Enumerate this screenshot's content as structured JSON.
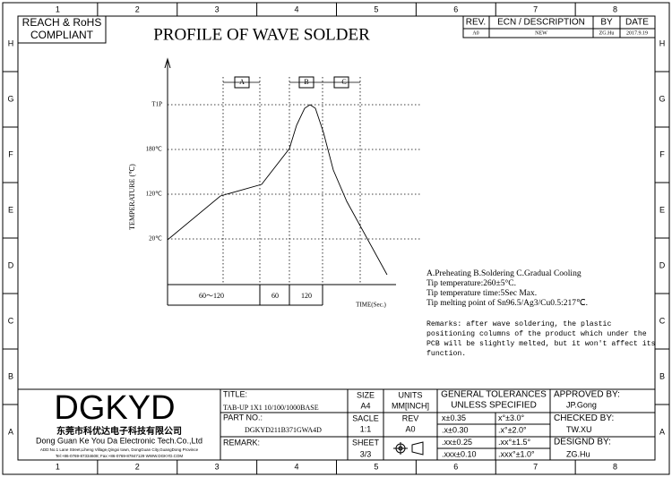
{
  "compliance_badge": [
    "REACH & RoHS",
    "COMPLIANT"
  ],
  "title": "PROFILE OF WAVE SOLDER",
  "grid": {
    "columns": [
      "1",
      "2",
      "3",
      "4",
      "5",
      "6",
      "7",
      "8"
    ],
    "rows": [
      "H",
      "G",
      "F",
      "E",
      "D",
      "C",
      "B",
      "A"
    ]
  },
  "revision_table": {
    "headers": [
      "REV.",
      "ECN / DESCRIPTION",
      "BY",
      "DATE"
    ],
    "rows": [
      [
        "A0",
        "NEW",
        "ZG.Hu",
        "2017.9.19"
      ]
    ]
  },
  "profile": {
    "y_axis_label": "TEMPERATURE (℃)",
    "temperature_labels": [
      "T1P",
      "180℃",
      "120℃",
      "20℃"
    ],
    "zones": [
      "A",
      "B",
      "C"
    ],
    "time_segments": [
      "60～120",
      "60",
      "120"
    ],
    "x_axis_label": "TIME(Sec.)"
  },
  "notes": [
    "A.Preheating  B.Soldering  C.Gradual Cooling",
    "Tip temperature:260±5°C.",
    "Tip temperature time:5Sec Max.",
    "Tip melting point of Sn96.5/Ag3/Cu0.5:217℃."
  ],
  "remarks": [
    "Remarks: after wave soldering, the plastic",
    "positioning columns of the product  which under the",
    "PCB will be slightly melted, but it won't affect its",
    "function."
  ],
  "title_block": {
    "company": {
      "logo": "DGKYD",
      "name_cn": "东莞市科优达电子科技有限公司",
      "name_en": "Dong Guan Ke You Da Electronic Tech.Co.,Ltd",
      "address": "ADD:No.1 Lane Street,Liheng Village,Qingxi town, DongGuan City,GuangDong Province",
      "contact": "Tel:+86-0769-87334608; Fax:+86-0769-87847129  WWW.DGKYD.COM"
    },
    "title_label": "TITLE:",
    "title_value": "TAB-UP 1X1 10/100/1000BASE",
    "part_label": "PART NO.:",
    "part_value": "DGKYD211B371GWA4D",
    "remark_label": "REMARK:",
    "size_label": "SIZE",
    "size_value": "A4",
    "scale_label": "SACLE",
    "scale_value": "1:1",
    "sheet_label": "SHEET",
    "sheet_value": "3/3",
    "units_label": "UNITS",
    "units_value": "MM[INCH]",
    "rev_label": "REV",
    "rev_value": "A0",
    "tolerance_header": [
      "GENERAL TOLERANCES",
      "UNLESS SPECIFIED"
    ],
    "tolerances": [
      [
        "x±0.35",
        "x°±3.0°"
      ],
      [
        ".x±0.30",
        ".x°±2.0°"
      ],
      [
        ".xx±0.25",
        ".xx°±1.5°"
      ],
      [
        ".xxx±0.10",
        ".xxx°±1.0°"
      ]
    ],
    "approvals": [
      [
        "APPROVED BY:",
        "JP.Gong"
      ],
      [
        "CHECKED BY:",
        "TW.XU"
      ],
      [
        "DESIGND BY:",
        "ZG.Hu"
      ]
    ]
  }
}
